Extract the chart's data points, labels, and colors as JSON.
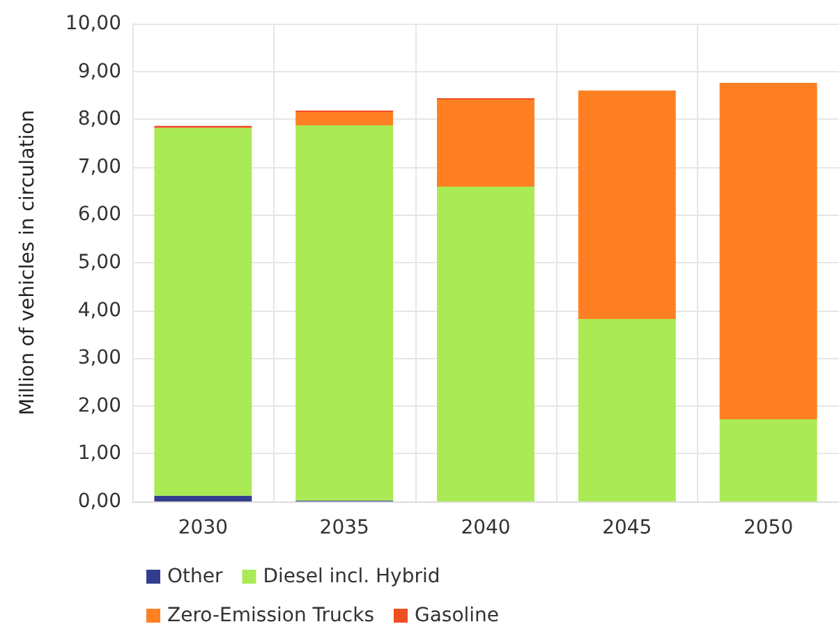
{
  "chart_data": {
    "type": "bar",
    "stacked": true,
    "ylabel": "Million of vehicles in circulation",
    "categories": [
      "2030",
      "2035",
      "2040",
      "2045",
      "2050"
    ],
    "series": [
      {
        "name": "Other",
        "color": "#343e8e",
        "values": [
          0.12,
          0.02,
          0,
          0,
          0
        ]
      },
      {
        "name": "Diesel incl. Hybrid",
        "color": "#aaea55",
        "values": [
          7.7,
          7.85,
          6.59,
          3.82,
          1.72
        ]
      },
      {
        "name": "Zero-Emission Trucks",
        "color": "#ff8022",
        "values": [
          0,
          0.28,
          1.82,
          4.78,
          7.04
        ]
      },
      {
        "name": "Gasoline",
        "color": "#f04e23",
        "values": [
          0.04,
          0.03,
          0.03,
          0,
          0
        ]
      }
    ],
    "ylim": [
      0,
      10
    ],
    "yticks": [
      {
        "value": 0,
        "label": "0,00"
      },
      {
        "value": 1,
        "label": "1,00"
      },
      {
        "value": 2,
        "label": "2,00"
      },
      {
        "value": 3,
        "label": "3,00"
      },
      {
        "value": 4,
        "label": "4,00"
      },
      {
        "value": 5,
        "label": "5,00"
      },
      {
        "value": 6,
        "label": "6,00"
      },
      {
        "value": 7,
        "label": "7,00"
      },
      {
        "value": 8,
        "label": "8,00"
      },
      {
        "value": 9,
        "label": "9,00"
      },
      {
        "value": 10,
        "label": "10,00"
      }
    ],
    "grid": true,
    "legend": "bottom left"
  }
}
